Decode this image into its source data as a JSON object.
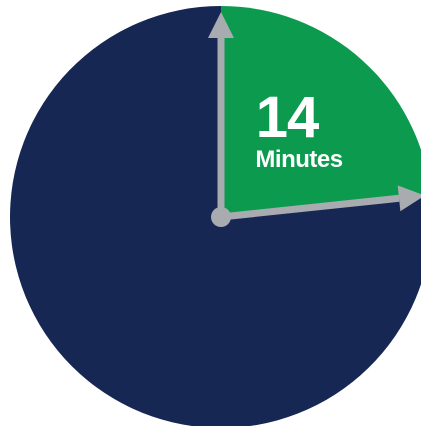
{
  "chart_data": {
    "type": "pie",
    "total": 60,
    "slices": [
      {
        "value": 14,
        "color": "#0c9a4e"
      },
      {
        "value": 46,
        "color": "#172753"
      }
    ],
    "highlight": {
      "value_label": "14",
      "unit_label": "Minutes"
    },
    "hands": {
      "color": "#a8abb0",
      "start_value": 0,
      "end_value": 14
    }
  }
}
